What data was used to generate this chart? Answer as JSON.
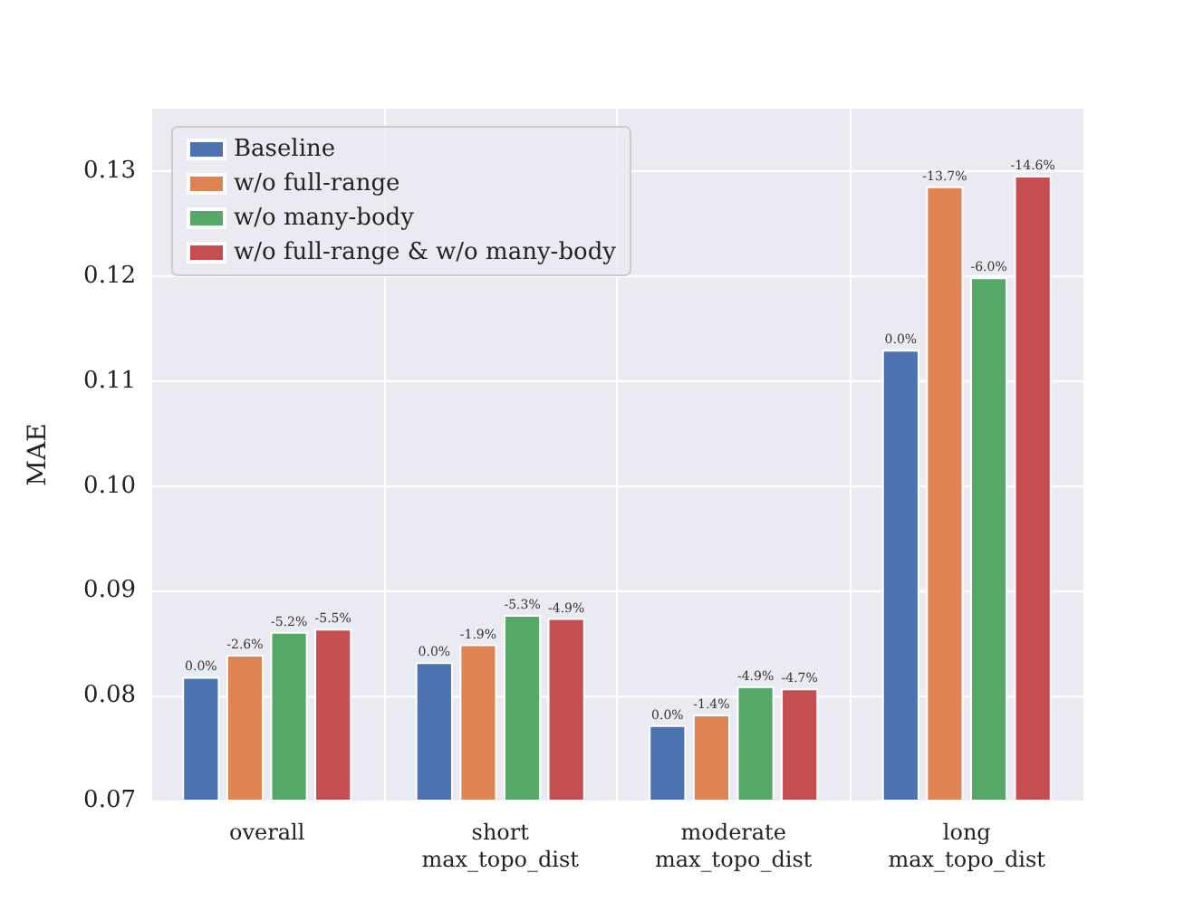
{
  "chart_data": {
    "type": "bar",
    "ylabel": "MAE",
    "categories": [
      "overall",
      "short\nmax_topo_dist",
      "moderate\nmax_topo_dist",
      "long\nmax_topo_dist"
    ],
    "series": [
      {
        "name": "Baseline",
        "color": "#4c72b0",
        "values": [
          0.0818,
          0.0832,
          0.0772,
          0.113
        ]
      },
      {
        "name": "w/o full-range",
        "color": "#dd8452",
        "values": [
          0.0839,
          0.0849,
          0.0782,
          0.1286
        ]
      },
      {
        "name": "w/o many-body",
        "color": "#55a868",
        "values": [
          0.0861,
          0.0877,
          0.0809,
          0.1199
        ]
      },
      {
        "name": "w/o full-range & w/o many-body",
        "color": "#c44e52",
        "values": [
          0.0864,
          0.0874,
          0.0807,
          0.1296
        ]
      }
    ],
    "annotations": [
      "0.0%",
      "-2.6%",
      "-5.2%",
      "-5.5%",
      "0.0%",
      "-1.9%",
      "-5.3%",
      "-4.9%",
      "0.0%",
      "-1.4%",
      "-4.9%",
      "-4.7%",
      "0.0%",
      "-13.7%",
      "-6.0%",
      "-14.6%"
    ],
    "ylim": [
      0.07,
      0.136
    ],
    "yticks": [
      0.07,
      0.08,
      0.09,
      {
        "value": 0.1,
        "label": "0.10"
      },
      0.11,
      0.12,
      0.13
    ],
    "grid": true,
    "legend": "top left"
  }
}
